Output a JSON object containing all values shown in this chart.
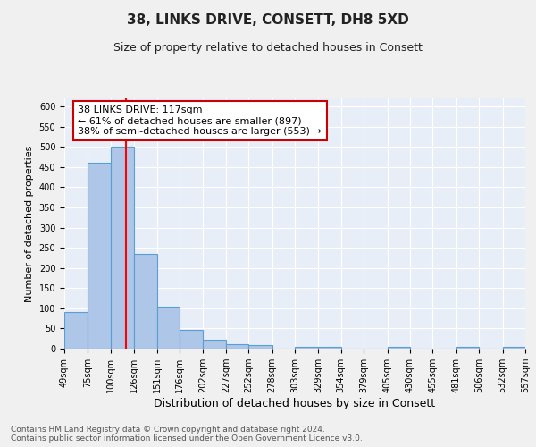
{
  "title": "38, LINKS DRIVE, CONSETT, DH8 5XD",
  "subtitle": "Size of property relative to detached houses in Consett",
  "xlabel": "Distribution of detached houses by size in Consett",
  "ylabel": "Number of detached properties",
  "bar_edges": [
    49,
    75,
    100,
    126,
    151,
    176,
    202,
    227,
    252,
    278,
    303,
    329,
    354,
    379,
    405,
    430,
    455,
    481,
    506,
    532,
    557
  ],
  "bar_heights": [
    90,
    460,
    500,
    235,
    105,
    47,
    22,
    12,
    8,
    0,
    5,
    5,
    0,
    0,
    5,
    0,
    0,
    5,
    0,
    5
  ],
  "bar_color": "#aec6e8",
  "bar_edge_color": "#5a9fd4",
  "red_line_x": 117,
  "annotation_text": "38 LINKS DRIVE: 117sqm\n← 61% of detached houses are smaller (897)\n38% of semi-detached houses are larger (553) →",
  "annotation_box_color": "#ffffff",
  "annotation_border_color": "#cc0000",
  "yticks": [
    0,
    50,
    100,
    150,
    200,
    250,
    300,
    350,
    400,
    450,
    500,
    550,
    600
  ],
  "xtick_labels": [
    "49sqm",
    "75sqm",
    "100sqm",
    "126sqm",
    "151sqm",
    "176sqm",
    "202sqm",
    "227sqm",
    "252sqm",
    "278sqm",
    "303sqm",
    "329sqm",
    "354sqm",
    "379sqm",
    "405sqm",
    "430sqm",
    "455sqm",
    "481sqm",
    "506sqm",
    "532sqm",
    "557sqm"
  ],
  "background_color": "#e8eef8",
  "grid_color": "#ffffff",
  "footnote": "Contains HM Land Registry data © Crown copyright and database right 2024.\nContains public sector information licensed under the Open Government Licence v3.0.",
  "title_fontsize": 11,
  "subtitle_fontsize": 9,
  "xlabel_fontsize": 9,
  "ylabel_fontsize": 8,
  "tick_fontsize": 7,
  "annotation_fontsize": 8,
  "footnote_fontsize": 6.5
}
